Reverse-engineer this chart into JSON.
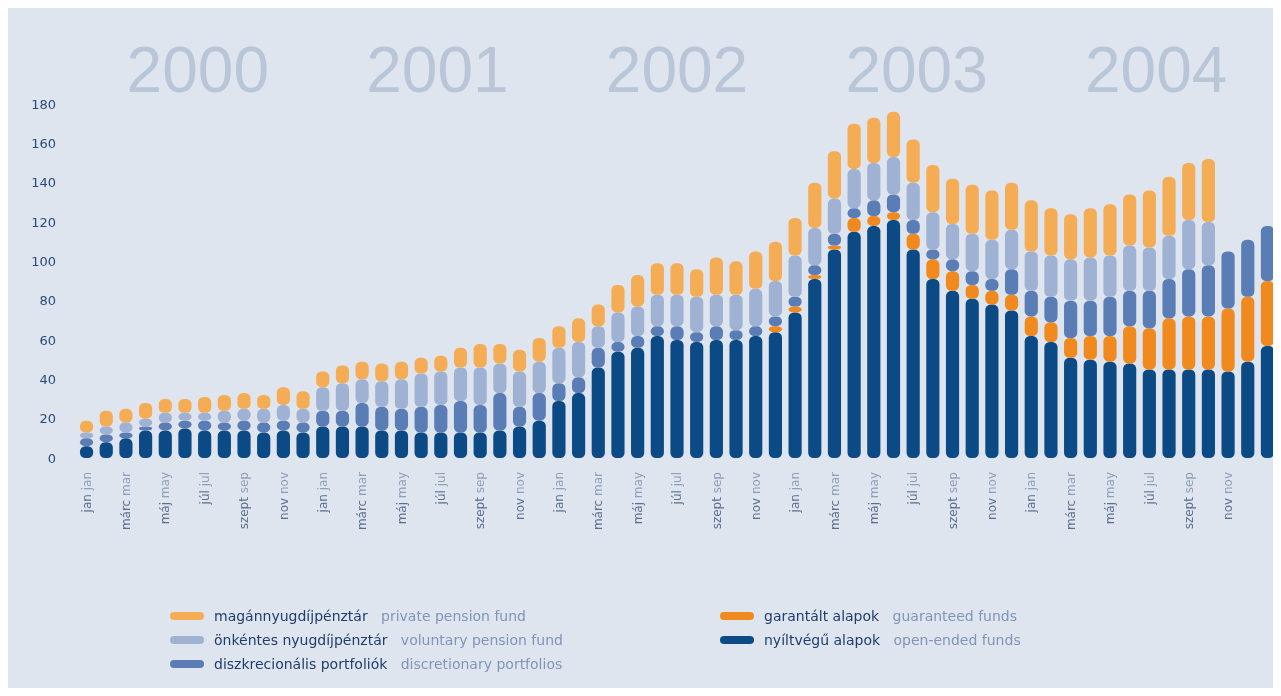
{
  "chart_data": {
    "type": "bar",
    "stacked": true,
    "categories": [
      "jan jan",
      null,
      "márc mar",
      null,
      "máj may",
      null,
      "júl jul",
      null,
      "szept sep",
      null,
      "nov nov",
      null,
      "jan jan",
      null,
      "márc mar",
      null,
      "máj may",
      null,
      "júl jul",
      null,
      "szept sep",
      null,
      "nov nov",
      null,
      "jan jan",
      null,
      "márc mar",
      null,
      "máj may",
      null,
      "júl jul",
      null,
      "szept sep",
      null,
      "nov nov",
      null,
      "jan jan",
      null,
      "márc mar",
      null,
      "máj may",
      null,
      "júl jul",
      null,
      "szept sep",
      null,
      "nov nov",
      null,
      "jan jan",
      null,
      "márc mar",
      null,
      "máj may",
      null,
      "júl jul",
      null,
      "szept sep",
      null,
      "nov nov",
      null,
      null
    ],
    "series": [
      {
        "name": "nyíltvégű alapok\nopen-ended funds",
        "color": "#0b4a84",
        "values": [
          6,
          8,
          10,
          14,
          14,
          15,
          14,
          14,
          14,
          13,
          14,
          13,
          16,
          16,
          16,
          14,
          14,
          13,
          13,
          13,
          13,
          14,
          16,
          19,
          29,
          33,
          46,
          54,
          56,
          62,
          60,
          59,
          60,
          60,
          62,
          64,
          74,
          91,
          106,
          115,
          118,
          121,
          106,
          91,
          85,
          81,
          78,
          75,
          62,
          59,
          51,
          50,
          49,
          48,
          45,
          45,
          45,
          45,
          44,
          49,
          57
        ]
      },
      {
        "name": "garantált alapok\nguaranteed funds",
        "color": "#f08a1e",
        "values": [
          0,
          0,
          0,
          0,
          0,
          0,
          0,
          0,
          0,
          0,
          0,
          0,
          0,
          0,
          0,
          0,
          0,
          0,
          0,
          0,
          0,
          0,
          0,
          0,
          0,
          0,
          0,
          0,
          0,
          0,
          0,
          0,
          0,
          0,
          0,
          3,
          3,
          2,
          2,
          7,
          5,
          4,
          8,
          10,
          10,
          7,
          7,
          8,
          10,
          10,
          10,
          12,
          13,
          19,
          21,
          26,
          27,
          27,
          32,
          33,
          33
        ]
      },
      {
        "name": "diszkrecionális portfoliók\ndiscretionary portfolios",
        "color": "#5a7db5",
        "values": [
          4,
          4,
          3,
          2,
          4,
          4,
          5,
          4,
          5,
          5,
          5,
          5,
          8,
          8,
          12,
          12,
          11,
          13,
          14,
          16,
          14,
          19,
          10,
          14,
          9,
          8,
          10,
          5,
          6,
          5,
          7,
          5,
          7,
          5,
          5,
          5,
          5,
          5,
          6,
          5,
          8,
          9,
          7,
          5,
          6,
          7,
          6,
          13,
          13,
          13,
          19,
          18,
          20,
          18,
          19,
          20,
          24,
          26,
          29,
          29,
          28
        ]
      },
      {
        "name": "önkéntes nyugdíjpénztár\nvoluntary pension fund",
        "color": "#9fb2d3",
        "values": [
          3,
          4,
          5,
          4,
          5,
          4,
          4,
          6,
          6,
          7,
          8,
          7,
          12,
          14,
          12,
          13,
          15,
          17,
          17,
          17,
          19,
          15,
          18,
          16,
          18,
          18,
          11,
          15,
          15,
          16,
          16,
          18,
          16,
          18,
          19,
          18,
          21,
          19,
          18,
          20,
          19,
          19,
          19,
          19,
          18,
          19,
          20,
          20,
          20,
          21,
          21,
          22,
          21,
          23,
          22,
          22,
          25,
          22,
          0,
          0,
          0
        ]
      },
      {
        "name": "magánnyugdíjpénztár\nprivate pension fund",
        "color": "#f5ad55",
        "values": [
          6,
          8,
          7,
          8,
          7,
          7,
          8,
          8,
          8,
          7,
          9,
          9,
          8,
          9,
          9,
          9,
          9,
          8,
          8,
          10,
          12,
          10,
          11,
          12,
          11,
          12,
          11,
          14,
          16,
          16,
          16,
          14,
          19,
          17,
          19,
          20,
          19,
          23,
          24,
          23,
          23,
          23,
          22,
          24,
          23,
          25,
          25,
          24,
          26,
          24,
          23,
          25,
          26,
          26,
          29,
          30,
          29,
          32,
          0,
          0,
          0
        ]
      }
    ],
    "ylim": [
      0,
      180
    ],
    "yticks": [
      0,
      20,
      40,
      60,
      80,
      100,
      120,
      140,
      160,
      180
    ],
    "annotations": [
      "2000",
      "2001",
      "2002",
      "2003",
      "2004"
    ],
    "legend": "bottom"
  }
}
